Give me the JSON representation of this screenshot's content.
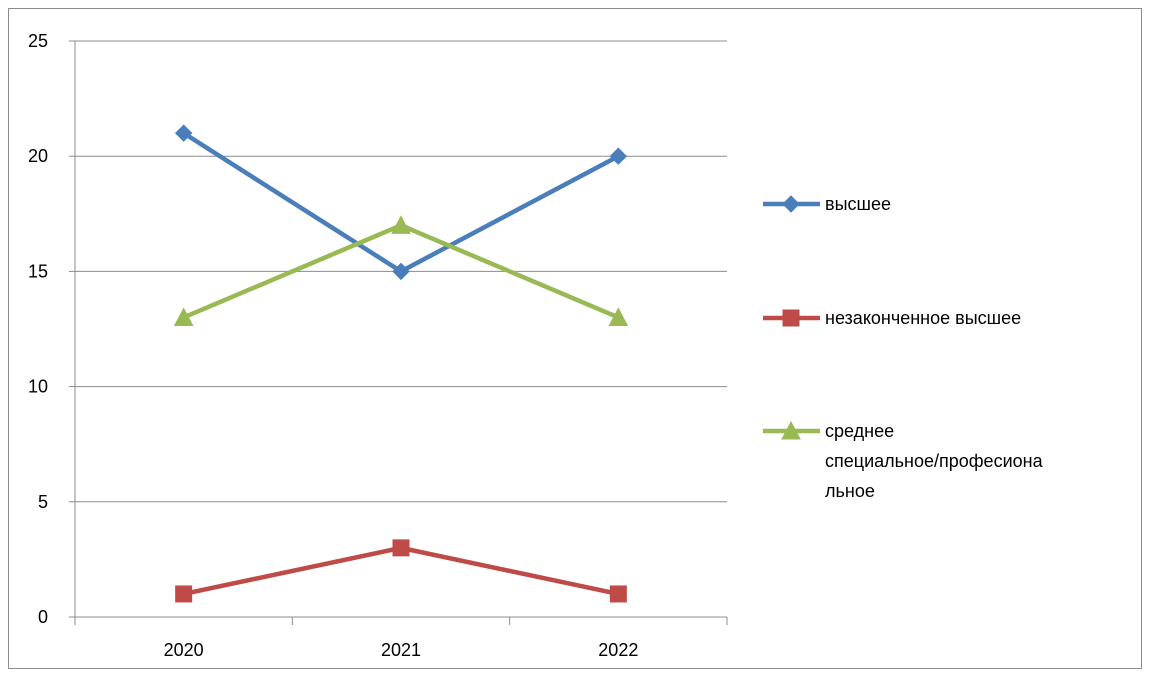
{
  "chart_data": {
    "type": "line",
    "categories": [
      "2020",
      "2021",
      "2022"
    ],
    "series": [
      {
        "name": "высшее",
        "values": [
          21,
          15,
          20
        ],
        "color": "#4a7ebb",
        "marker": "diamond"
      },
      {
        "name": "незаконченное высшее",
        "values": [
          1,
          3,
          1
        ],
        "color": "#be4b48",
        "marker": "square"
      },
      {
        "name": "среднее специальное/профессиональное",
        "values": [
          13,
          17,
          13
        ],
        "color": "#98b954",
        "marker": "triangle"
      }
    ],
    "legend_lines": [
      [
        "высшее"
      ],
      [
        "незаконченное высшее"
      ],
      [
        "среднее",
        "специальное/професиона",
        "льное"
      ]
    ],
    "title": "",
    "xlabel": "",
    "ylabel": "",
    "ylim": [
      0,
      25
    ],
    "yticks": [
      0,
      5,
      10,
      15,
      20,
      25
    ],
    "grid": true,
    "legend_position": "right"
  }
}
